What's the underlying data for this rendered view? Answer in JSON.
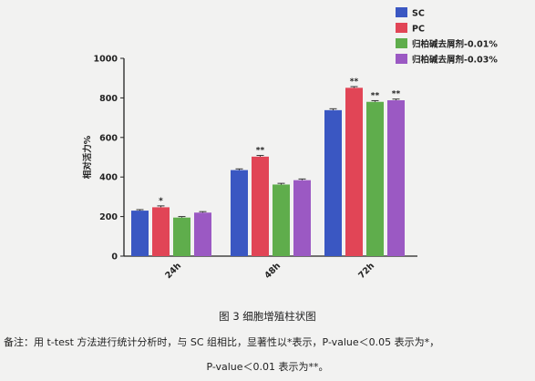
{
  "chart_data": {
    "type": "bar",
    "categories": [
      "24h",
      "48h",
      "72h"
    ],
    "ylabel": "相对活力%",
    "ylim": [
      0,
      1000
    ],
    "yticks": [
      0,
      200,
      400,
      600,
      800,
      1000
    ],
    "legend_position": "top-right",
    "series": [
      {
        "name": "SC",
        "color": "#3a57c2",
        "values": [
          230,
          435,
          738
        ],
        "errors": [
          5,
          6,
          7
        ],
        "marks": [
          "",
          "",
          ""
        ]
      },
      {
        "name": "PC",
        "color": "#e14556",
        "values": [
          247,
          503,
          851
        ],
        "errors": [
          7,
          6,
          6
        ],
        "marks": [
          "*",
          "**",
          "**"
        ]
      },
      {
        "name": "归柏碱去屑剂-0.01%",
        "color": "#5fad4c",
        "values": [
          195,
          362,
          780
        ],
        "errors": [
          5,
          6,
          6
        ],
        "marks": [
          "",
          "",
          "**"
        ]
      },
      {
        "name": "归柏碱去屑剂-0.03%",
        "color": "#9b59c3",
        "values": [
          220,
          384,
          788
        ],
        "errors": [
          5,
          6,
          6
        ],
        "marks": [
          "",
          "",
          "**"
        ]
      }
    ]
  },
  "caption": "图 3  细胞增殖柱状图",
  "note": {
    "line1": "备注：用 t-test 方法进行统计分析时，与 SC 组相比，显著性以*表示，P-value＜0.05 表示为*，",
    "line2": "P-value＜0.01 表示为**。"
  }
}
